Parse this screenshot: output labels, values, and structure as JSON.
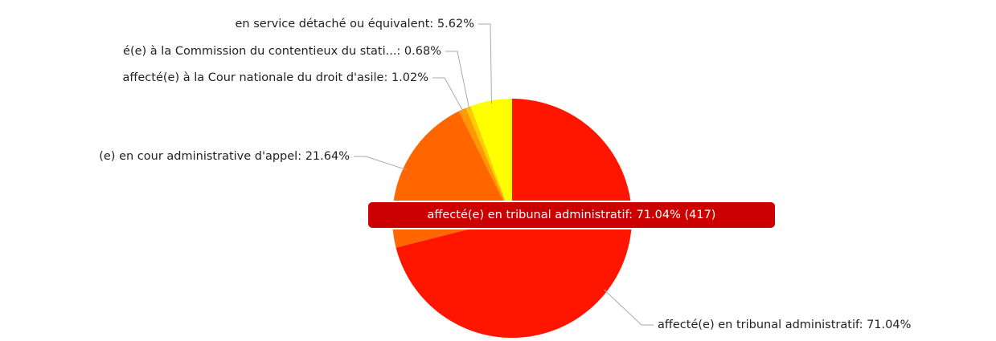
{
  "chart_data": {
    "type": "pie",
    "labels": [
      "affecté(e) en tribunal administratif: 71.04%",
      "(e) en cour administrative d'appel: 21.64%",
      "affecté(e) à la Cour nationale du droit d'asile: 1.02%",
      "é(e) à la Commission du contentieux du stati...: 0.68%",
      "en service détaché ou équivalent: 5.62%"
    ],
    "values": [
      71.04,
      21.64,
      1.02,
      0.68,
      5.62
    ],
    "colors": [
      "#ff1500",
      "#ff6600",
      "#ff9900",
      "#ffcc00",
      "#ffff00"
    ],
    "tooltip": "affecté(e) en tribunal administratif: 71.04% (417)"
  }
}
